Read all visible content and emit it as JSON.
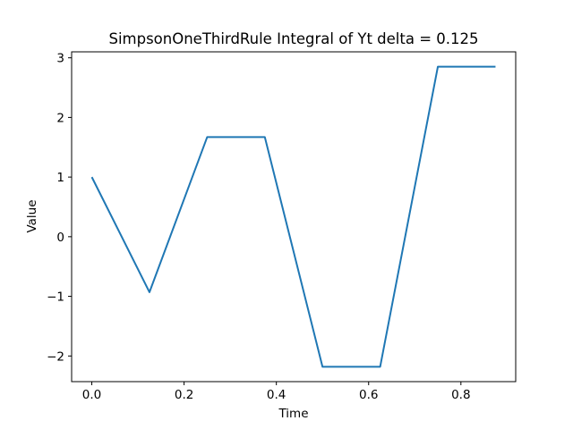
{
  "chart_data": {
    "type": "line",
    "title": "SimpsonOneThirdRule Integral of Yt delta = 0.125",
    "xlabel": "Time",
    "ylabel": "Value",
    "xlim": [
      -0.04375,
      0.91875
    ],
    "ylim": [
      -2.43,
      3.1
    ],
    "xticks": [
      0.0,
      0.2,
      0.4,
      0.6,
      0.8
    ],
    "xtick_labels": [
      "0.0",
      "0.2",
      "0.4",
      "0.6",
      "0.8"
    ],
    "yticks": [
      -2,
      -1,
      0,
      1,
      2,
      3
    ],
    "ytick_labels": [
      "−2",
      "−1",
      "0",
      "1",
      "2",
      "3"
    ],
    "grid": false,
    "series": [
      {
        "color": "#1f77b4",
        "x": [
          0.0,
          0.125,
          0.25,
          0.375,
          0.5,
          0.625,
          0.75,
          0.875
        ],
        "y": [
          1.0,
          -0.93,
          1.67,
          1.67,
          -2.18,
          -2.18,
          2.85,
          2.85
        ]
      }
    ]
  }
}
